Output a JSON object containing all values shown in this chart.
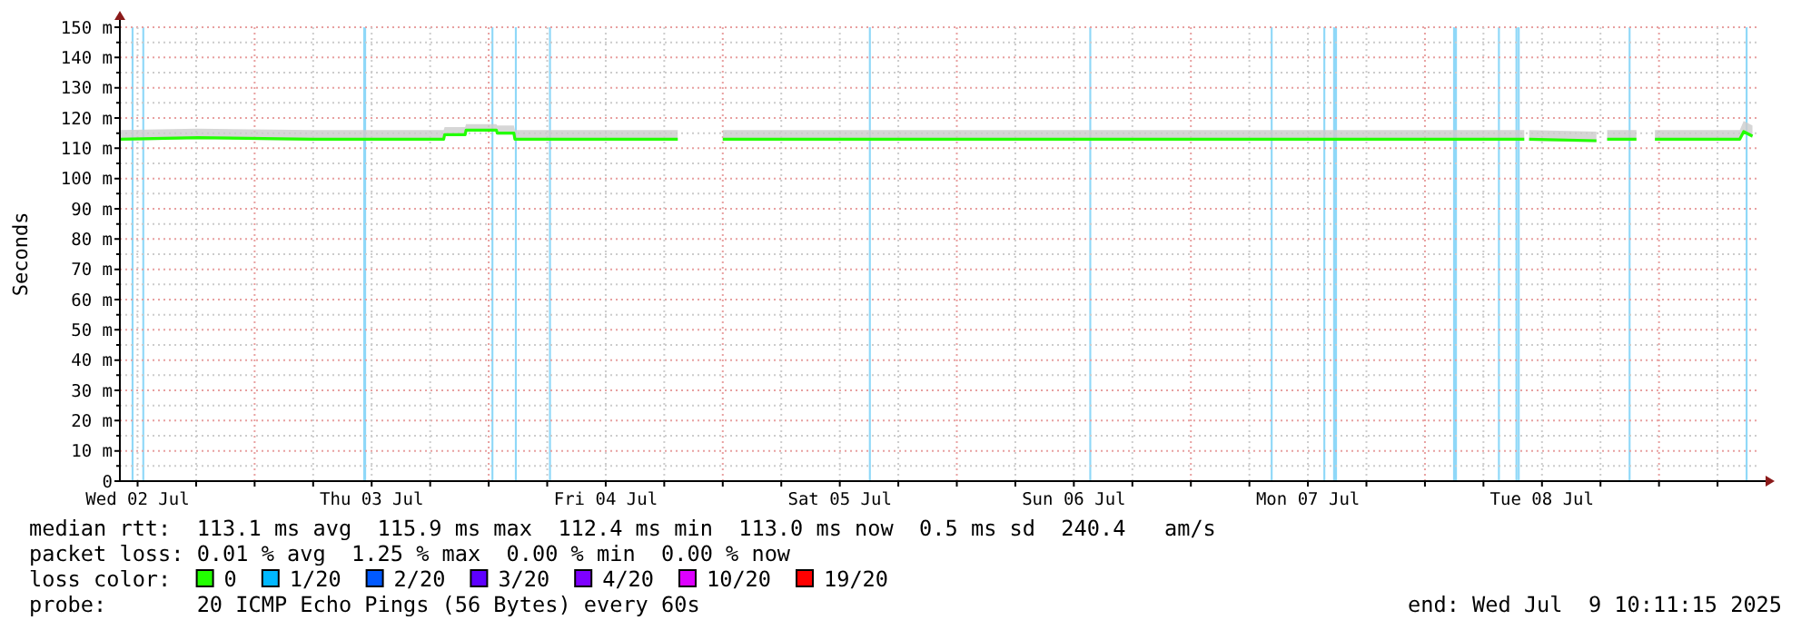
{
  "chart_data": {
    "type": "line",
    "ylabel": "Seconds",
    "xlim": [
      "2025-07-02T10:11",
      "2025-07-09T10:11"
    ],
    "ylim": [
      0,
      150
    ],
    "yticks": [
      {
        "value": 0,
        "label": "0"
      },
      {
        "value": 5,
        "label": null
      },
      {
        "value": 10,
        "label": "10 m"
      },
      {
        "value": 15,
        "label": null
      },
      {
        "value": 20,
        "label": "20 m"
      },
      {
        "value": 25,
        "label": null
      },
      {
        "value": 30,
        "label": "30 m"
      },
      {
        "value": 35,
        "label": null
      },
      {
        "value": 40,
        "label": "40 m"
      },
      {
        "value": 45,
        "label": null
      },
      {
        "value": 50,
        "label": "50 m"
      },
      {
        "value": 55,
        "label": null
      },
      {
        "value": 60,
        "label": "60 m"
      },
      {
        "value": 65,
        "label": null
      },
      {
        "value": 70,
        "label": "70 m"
      },
      {
        "value": 75,
        "label": null
      },
      {
        "value": 80,
        "label": "80 m"
      },
      {
        "value": 85,
        "label": null
      },
      {
        "value": 90,
        "label": "90 m"
      },
      {
        "value": 95,
        "label": null
      },
      {
        "value": 100,
        "label": "100 m"
      },
      {
        "value": 105,
        "label": null
      },
      {
        "value": 110,
        "label": "110 m"
      },
      {
        "value": 115,
        "label": null
      },
      {
        "value": 120,
        "label": "120 m"
      },
      {
        "value": 125,
        "label": null
      },
      {
        "value": 130,
        "label": "130 m"
      },
      {
        "value": 135,
        "label": null
      },
      {
        "value": 140,
        "label": "140 m"
      },
      {
        "value": 145,
        "label": null
      },
      {
        "value": 150,
        "label": "150 m"
      }
    ],
    "xticks": [
      {
        "value": "2025-07-02T12:00",
        "label": "Wed 02 Jul"
      },
      {
        "value": "2025-07-02T18:00",
        "label": null
      },
      {
        "value": "2025-07-03T00:00",
        "label": null
      },
      {
        "value": "2025-07-03T06:00",
        "label": null
      },
      {
        "value": "2025-07-03T12:00",
        "label": "Thu 03 Jul"
      },
      {
        "value": "2025-07-03T18:00",
        "label": null
      },
      {
        "value": "2025-07-04T00:00",
        "label": null
      },
      {
        "value": "2025-07-04T06:00",
        "label": null
      },
      {
        "value": "2025-07-04T12:00",
        "label": "Fri 04 Jul"
      },
      {
        "value": "2025-07-04T18:00",
        "label": null
      },
      {
        "value": "2025-07-05T00:00",
        "label": null
      },
      {
        "value": "2025-07-05T06:00",
        "label": null
      },
      {
        "value": "2025-07-05T12:00",
        "label": "Sat 05 Jul"
      },
      {
        "value": "2025-07-05T18:00",
        "label": null
      },
      {
        "value": "2025-07-06T00:00",
        "label": null
      },
      {
        "value": "2025-07-06T06:00",
        "label": null
      },
      {
        "value": "2025-07-06T12:00",
        "label": "Sun 06 Jul"
      },
      {
        "value": "2025-07-06T18:00",
        "label": null
      },
      {
        "value": "2025-07-07T00:00",
        "label": null
      },
      {
        "value": "2025-07-07T06:00",
        "label": null
      },
      {
        "value": "2025-07-07T12:00",
        "label": "Mon 07 Jul"
      },
      {
        "value": "2025-07-07T18:00",
        "label": null
      },
      {
        "value": "2025-07-08T00:00",
        "label": null
      },
      {
        "value": "2025-07-08T06:00",
        "label": null
      },
      {
        "value": "2025-07-08T12:00",
        "label": "Tue 08 Jul"
      },
      {
        "value": "2025-07-08T18:00",
        "label": null
      },
      {
        "value": "2025-07-09T00:00",
        "label": null
      },
      {
        "value": "2025-07-09T06:00",
        "label": null
      }
    ],
    "grid": true,
    "legend": "bottom",
    "legend_title": "loss color:",
    "marker": "none",
    "line_style": "solid",
    "series": [
      {
        "name": "0",
        "color": "#22ff00",
        "x": [
          "2025-07-02T10:11",
          "2025-07-02T18:11",
          "2025-07-03T06:00",
          "2025-07-03T19:23",
          "2025-07-03T19:29",
          "2025-07-03T21:35",
          "2025-07-03T21:41",
          "2025-07-04T00:47",
          "2025-07-04T00:53",
          "2025-07-04T02:35",
          "2025-07-04T02:41",
          "2025-07-04T19:23",
          "2025-07-04T19:40",
          "2025-07-05T00:00",
          "2025-07-06T12:00",
          "2025-07-07T12:00",
          "2025-07-08T10:11",
          "2025-07-08T10:20",
          "2025-07-08T10:41",
          "2025-07-08T17:35",
          "2025-07-08T18:00",
          "2025-07-08T18:41",
          "2025-07-08T21:41",
          "2025-07-08T21:55",
          "2025-07-08T23:35",
          "2025-07-09T08:17",
          "2025-07-09T08:41",
          "2025-07-09T09:35"
        ],
        "values": [
          113,
          113.5,
          113,
          113,
          114.5,
          114.5,
          116,
          116,
          115,
          115,
          113,
          113,
          null,
          113,
          113,
          113,
          113,
          null,
          113,
          112.5,
          null,
          113,
          113,
          null,
          113,
          113,
          115.5,
          114
        ],
        "lower": [
          112.5,
          113,
          112.5,
          112.5,
          114,
          114,
          115.5,
          115.5,
          114.5,
          114.5,
          112.5,
          112.5,
          null,
          112.5,
          112.5,
          112.5,
          112.5,
          null,
          112.5,
          112,
          null,
          112.5,
          112.5,
          null,
          112.5,
          112.5,
          115,
          113.5
        ],
        "upper": [
          116,
          116.5,
          116,
          116,
          117,
          117,
          118,
          118,
          117.5,
          117.5,
          116,
          116,
          null,
          116,
          116,
          116,
          116,
          null,
          116,
          115.5,
          null,
          116,
          116,
          null,
          116,
          116,
          119,
          117.5
        ]
      },
      {
        "name": "1/20",
        "color": "#00b8ff"
      },
      {
        "name": "2/20",
        "color": "#0059ff"
      },
      {
        "name": "3/20",
        "color": "#5e00ff"
      },
      {
        "name": "4/20",
        "color": "#7e00ff"
      },
      {
        "name": "10/20",
        "color": "#dd00ff"
      },
      {
        "name": "19/20",
        "color": "#ff0000"
      }
    ],
    "bands": [
      {
        "axis": "x",
        "from": "2025-07-02T11:23",
        "to": "2025-07-02T11:35",
        "color": "#8fd8f8"
      },
      {
        "axis": "x",
        "from": "2025-07-02T12:29",
        "to": "2025-07-02T12:41",
        "color": "#8fd8f8"
      },
      {
        "axis": "x",
        "from": "2025-07-03T11:08",
        "to": "2025-07-03T11:26",
        "color": "#8fd8f8"
      },
      {
        "axis": "x",
        "from": "2025-07-04T00:17",
        "to": "2025-07-04T00:29",
        "color": "#8fd8f8"
      },
      {
        "axis": "x",
        "from": "2025-07-04T02:41",
        "to": "2025-07-04T02:53",
        "color": "#8fd8f8"
      },
      {
        "axis": "x",
        "from": "2025-07-04T06:11",
        "to": "2025-07-04T06:23",
        "color": "#8fd8f8"
      },
      {
        "axis": "x",
        "from": "2025-07-05T14:59",
        "to": "2025-07-05T15:11",
        "color": "#8fd8f8"
      },
      {
        "axis": "x",
        "from": "2025-07-06T13:35",
        "to": "2025-07-06T13:47",
        "color": "#8fd8f8"
      },
      {
        "axis": "x",
        "from": "2025-07-07T08:11",
        "to": "2025-07-07T08:23",
        "color": "#8fd8f8"
      },
      {
        "axis": "x",
        "from": "2025-07-07T13:35",
        "to": "2025-07-07T13:47",
        "color": "#8fd8f8"
      },
      {
        "axis": "x",
        "from": "2025-07-07T14:35",
        "to": "2025-07-07T14:59",
        "color": "#8fd8f8"
      },
      {
        "axis": "x",
        "from": "2025-07-08T02:53",
        "to": "2025-07-08T03:17",
        "color": "#8fd8f8"
      },
      {
        "axis": "x",
        "from": "2025-07-08T07:29",
        "to": "2025-07-08T07:41",
        "color": "#8fd8f8"
      },
      {
        "axis": "x",
        "from": "2025-07-08T09:17",
        "to": "2025-07-08T09:29",
        "color": "#8fd8f8"
      },
      {
        "axis": "x",
        "from": "2025-07-08T09:31",
        "to": "2025-07-08T09:43",
        "color": "#8fd8f8"
      },
      {
        "axis": "x",
        "from": "2025-07-08T20:53",
        "to": "2025-07-08T21:05",
        "color": "#8fd8f8"
      },
      {
        "axis": "x",
        "from": "2025-07-09T08:53",
        "to": "2025-07-09T09:05",
        "color": "#8fd8f8"
      }
    ],
    "annotations": [
      "median rtt:  113.1 ms avg  115.9 ms max  112.4 ms min  113.0 ms now  0.5 ms sd  240.4   am/s",
      "packet loss: 0.01 % avg  1.25 % max  0.00 % min  0.00 % now",
      "probe:       20 ICMP Echo Pings (56 Bytes) every 60s",
      "end: Wed Jul  9 10:11:15 2025"
    ]
  }
}
